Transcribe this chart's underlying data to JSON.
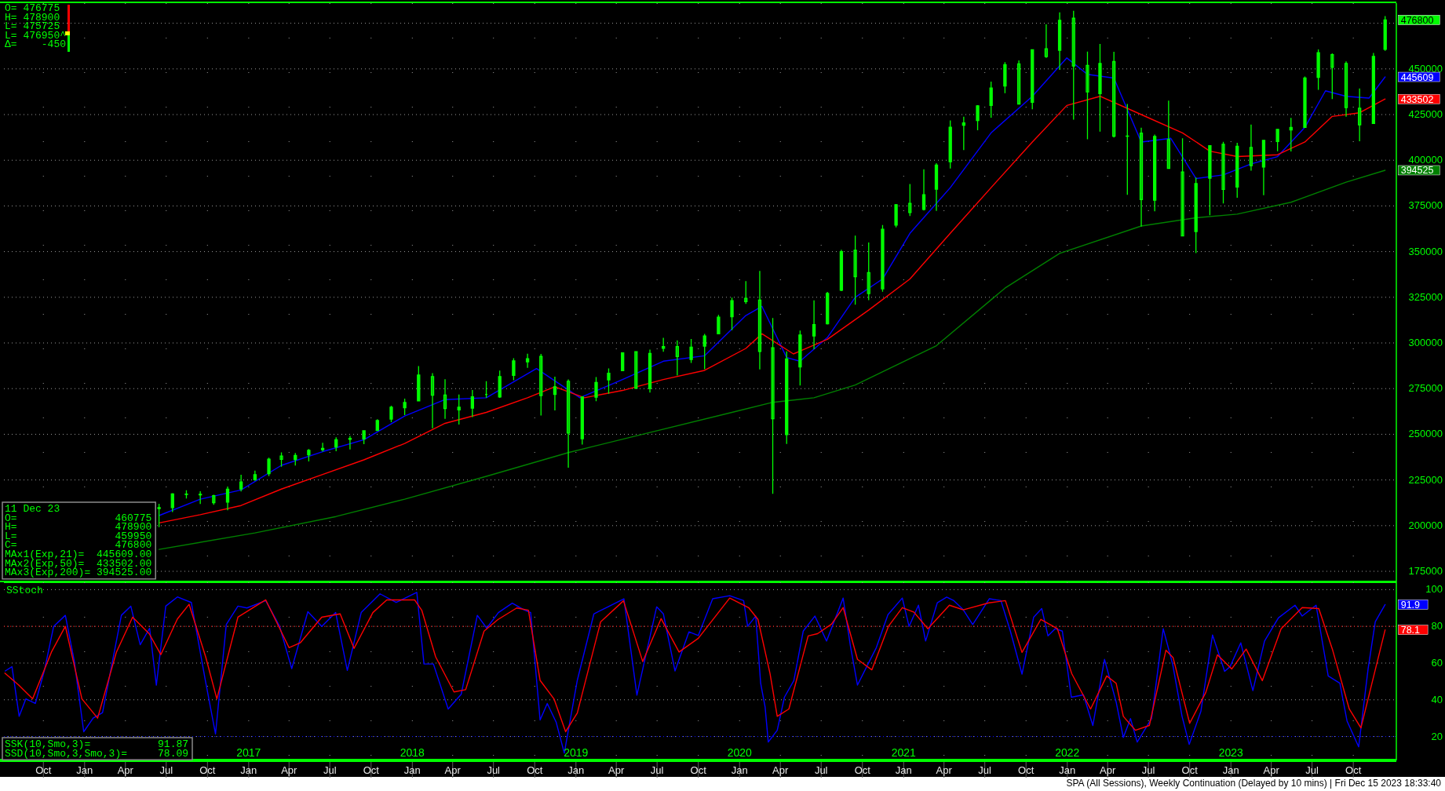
{
  "chart_data": [
    {
      "type": "candlestick",
      "color": "#00ff00",
      "x": [
        "2016-06-15",
        "2016-07-15",
        "2016-08-15",
        "2016-09-15",
        "2016-10-15",
        "2016-11-15",
        "2016-12-15",
        "2017-01-15",
        "2017-02-15",
        "2017-03-15",
        "2017-04-15",
        "2017-05-15",
        "2017-06-15",
        "2017-07-15",
        "2017-08-15",
        "2017-09-15",
        "2017-10-15",
        "2017-11-15",
        "2017-12-15",
        "2018-01-15",
        "2018-02-15",
        "2018-03-15",
        "2018-04-15",
        "2018-05-15",
        "2018-06-15",
        "2018-07-15",
        "2018-08-15",
        "2018-09-15",
        "2018-10-15",
        "2018-11-15",
        "2018-12-15",
        "2019-01-15",
        "2019-02-15",
        "2019-03-15",
        "2019-04-15",
        "2019-05-15",
        "2019-06-15",
        "2019-07-15",
        "2019-08-15",
        "2019-09-15",
        "2019-10-15",
        "2019-11-15",
        "2019-12-15",
        "2020-01-15",
        "2020-02-15",
        "2020-03-15",
        "2020-04-15",
        "2020-05-15",
        "2020-06-15",
        "2020-07-15",
        "2020-08-15",
        "2020-09-15",
        "2020-10-15",
        "2020-11-15",
        "2020-12-15",
        "2021-01-15",
        "2021-02-15",
        "2021-03-15",
        "2021-04-15",
        "2021-05-15",
        "2021-06-15",
        "2021-07-15",
        "2021-08-15",
        "2021-09-15",
        "2021-10-15",
        "2021-11-15",
        "2021-12-15",
        "2022-01-15",
        "2022-02-15",
        "2022-03-15",
        "2022-04-15",
        "2022-05-15",
        "2022-06-15",
        "2022-07-15",
        "2022-08-15",
        "2022-09-15",
        "2022-10-15",
        "2022-11-15",
        "2022-12-15",
        "2023-01-15",
        "2023-02-15",
        "2023-03-15",
        "2023-04-15",
        "2023-05-15",
        "2023-06-15",
        "2023-07-15",
        "2023-08-15",
        "2023-09-15",
        "2023-10-15",
        "2023-11-15",
        "2023-12-11"
      ],
      "ohlc": [
        [
          209300,
          212000,
          199200,
          209900
        ],
        [
          209900,
          217800,
          207400,
          217400
        ],
        [
          217300,
          219400,
          214800,
          217100
        ],
        [
          217100,
          218800,
          211900,
          216800
        ],
        [
          216400,
          216900,
          211400,
          212600
        ],
        [
          212900,
          221400,
          208400,
          219900
        ],
        [
          220100,
          227800,
          218700,
          223900
        ],
        [
          225100,
          230100,
          224500,
          227900
        ],
        [
          228500,
          237200,
          227100,
          236400
        ],
        [
          238100,
          240100,
          232200,
          236300
        ],
        [
          236200,
          239800,
          232900,
          238400
        ],
        [
          238800,
          241900,
          235200,
          241200
        ],
        [
          241500,
          245400,
          240500,
          242300
        ],
        [
          243100,
          248400,
          240700,
          247000
        ],
        [
          247800,
          249100,
          241700,
          247200
        ],
        [
          247500,
          251900,
          244600,
          251900
        ],
        [
          252100,
          258200,
          252000,
          257500
        ],
        [
          258300,
          265700,
          256600,
          264800
        ],
        [
          264500,
          269500,
          260500,
          267400
        ],
        [
          268300,
          287300,
          268200,
          282400
        ],
        [
          281600,
          283500,
          253300,
          271400
        ],
        [
          271500,
          280100,
          258500,
          264100
        ],
        [
          263300,
          271800,
          255300,
          264800
        ],
        [
          264300,
          274200,
          259400,
          270500
        ],
        [
          271800,
          279100,
          269900,
          271800
        ],
        [
          270400,
          284900,
          269900,
          281600
        ],
        [
          282200,
          291600,
          279600,
          290200
        ],
        [
          289700,
          294100,
          286400,
          291400
        ],
        [
          292600,
          294000,
          260300,
          271200
        ],
        [
          271800,
          281500,
          263100,
          276000
        ],
        [
          279000,
          280000,
          231700,
          250700
        ],
        [
          247600,
          270800,
          244400,
          270400
        ],
        [
          270300,
          281300,
          268100,
          278400
        ],
        [
          279800,
          286000,
          272200,
          283400
        ],
        [
          284800,
          294900,
          284800,
          294600
        ],
        [
          295200,
          295400,
          275000,
          275200
        ],
        [
          275100,
          296400,
          272800,
          294200
        ],
        [
          297100,
          302800,
          295200,
          298000
        ],
        [
          298000,
          301400,
          282200,
          292600
        ],
        [
          290900,
          302200,
          289100,
          297700
        ],
        [
          298300,
          305000,
          285600,
          303800
        ],
        [
          305000,
          315400,
          305000,
          314100
        ],
        [
          314400,
          324800,
          307000,
          323100
        ],
        [
          324400,
          333800,
          321400,
          322600
        ],
        [
          323500,
          339400,
          285500,
          295400
        ],
        [
          297400,
          313600,
          217400,
          258500
        ],
        [
          249800,
          295400,
          244700,
          291200
        ],
        [
          286900,
          306800,
          276700,
          304400
        ],
        [
          303800,
          323300,
          296600,
          310000
        ],
        [
          310500,
          327900,
          310100,
          327100
        ],
        [
          328900,
          351000,
          328400,
          350000
        ],
        [
          350700,
          358800,
          320900,
          336300
        ],
        [
          338500,
          355000,
          323400,
          327000
        ],
        [
          329600,
          364600,
          328000,
          362200
        ],
        [
          364500,
          376000,
          363300,
          375600
        ],
        [
          376400,
          387000,
          369500,
          371400
        ],
        [
          373100,
          395000,
          372500,
          381100
        ],
        [
          384200,
          398400,
          372300,
          397300
        ],
        [
          399200,
          421800,
          395500,
          418100
        ],
        [
          419200,
          423800,
          405600,
          420400
        ],
        [
          421700,
          430200,
          416400,
          429800
        ],
        [
          430000,
          443000,
          423300,
          439500
        ],
        [
          440600,
          453700,
          436700,
          452300
        ],
        [
          452800,
          454600,
          430500,
          430800
        ],
        [
          431700,
          460800,
          427900,
          460500
        ],
        [
          461000,
          474400,
          456000,
          456700
        ],
        [
          460200,
          480900,
          449500,
          476600
        ],
        [
          477800,
          481800,
          422200,
          451600
        ],
        [
          451900,
          459500,
          411500,
          437400
        ],
        [
          436400,
          463700,
          415700,
          453000
        ],
        [
          454000,
          459400,
          412400,
          413200
        ],
        [
          413100,
          430800,
          381100,
          413200
        ],
        [
          414900,
          417800,
          363700,
          378500
        ],
        [
          378100,
          414100,
          372100,
          413000
        ],
        [
          411300,
          432600,
          395500,
          395500
        ],
        [
          393600,
          412000,
          358500,
          358600
        ],
        [
          361000,
          390500,
          349200,
          387200
        ],
        [
          390200,
          408000,
          369900,
          408000
        ],
        [
          408700,
          410100,
          376400,
          384000
        ],
        [
          385300,
          409500,
          379500,
          407700
        ],
        [
          407000,
          419500,
          394300,
          397000
        ],
        [
          396300,
          411000,
          380900,
          410900
        ],
        [
          410200,
          417000,
          404900,
          416900
        ],
        [
          416600,
          423200,
          404800,
          418000
        ],
        [
          418000,
          445800,
          417800,
          445000
        ],
        [
          445400,
          460700,
          438500,
          458900
        ],
        [
          457800,
          458500,
          433500,
          450800
        ],
        [
          453000,
          454100,
          423800,
          428800
        ],
        [
          428500,
          439300,
          410400,
          419400
        ],
        [
          420100,
          458700,
          419800,
          456800
        ],
        [
          460775,
          478900,
          459950,
          476800
        ]
      ],
      "series": [
        {
          "type": "line",
          "color": "#0000ff",
          "x": [
            "2016-06-15",
            "2016-09-15",
            "2016-12-15",
            "2017-03-15",
            "2017-06-15",
            "2017-09-15",
            "2017-12-15",
            "2018-03-15",
            "2018-06-15",
            "2018-10-05",
            "2019-01-10",
            "2019-04-15",
            "2019-07-15",
            "2019-10-15",
            "2020-01-15",
            "2020-02-20",
            "2020-04-15",
            "2020-05-15",
            "2020-07-15",
            "2020-09-15",
            "2020-11-15",
            "2021-01-15",
            "2021-04-15",
            "2021-07-15",
            "2021-10-15",
            "2021-12-31",
            "2022-02-15",
            "2022-04-15",
            "2022-06-15",
            "2022-08-20",
            "2022-10-15",
            "2022-12-15",
            "2023-02-15",
            "2023-04-15",
            "2023-06-15",
            "2023-07-31",
            "2023-09-15",
            "2023-11-05",
            "2023-12-11"
          ],
          "values": [
            205500,
            214500,
            219500,
            233000,
            240500,
            247000,
            260000,
            269000,
            270000,
            286000,
            270000,
            280000,
            290000,
            293000,
            315000,
            320000,
            292000,
            290000,
            303000,
            325000,
            335000,
            360000,
            385000,
            415000,
            435000,
            456000,
            447000,
            445000,
            410000,
            412000,
            390000,
            392000,
            398000,
            402000,
            418000,
            438000,
            435000,
            434000,
            445609
          ],
          "value_labels": [
            null,
            null,
            null,
            null,
            null,
            null,
            null,
            null,
            null,
            null,
            null,
            null,
            null,
            null,
            null,
            null,
            null,
            null,
            null,
            null,
            null,
            null,
            null,
            null,
            null,
            null,
            null,
            null,
            null,
            null,
            null,
            null,
            null,
            null,
            null,
            null,
            null,
            null,
            "445609"
          ]
        },
        {
          "type": "line",
          "color": "#ff0000",
          "x": [
            "2016-06-15",
            "2016-09-15",
            "2016-12-15",
            "2017-03-15",
            "2017-06-15",
            "2017-09-15",
            "2017-12-15",
            "2018-03-15",
            "2018-06-15",
            "2018-09-15",
            "2018-11-15",
            "2019-01-20",
            "2019-04-15",
            "2019-07-15",
            "2019-10-15",
            "2020-01-15",
            "2020-02-20",
            "2020-04-30",
            "2020-07-15",
            "2020-10-15",
            "2021-01-15",
            "2021-04-15",
            "2021-07-15",
            "2021-10-15",
            "2021-12-31",
            "2022-03-15",
            "2022-06-15",
            "2022-09-15",
            "2022-11-15",
            "2023-01-15",
            "2023-04-15",
            "2023-06-15",
            "2023-08-15",
            "2023-10-15",
            "2023-12-11"
          ],
          "values": [
            201500,
            206000,
            211000,
            220000,
            228000,
            236000,
            245000,
            256000,
            262000,
            270000,
            276000,
            270000,
            274000,
            280000,
            285000,
            297000,
            305000,
            294000,
            302000,
            318000,
            335000,
            360000,
            385000,
            410000,
            430000,
            435000,
            425000,
            415000,
            405000,
            402000,
            403000,
            410000,
            424000,
            426000,
            433502
          ],
          "value_labels": [
            null,
            null,
            null,
            null,
            null,
            null,
            null,
            null,
            null,
            null,
            null,
            null,
            null,
            null,
            null,
            null,
            null,
            null,
            null,
            null,
            null,
            null,
            null,
            null,
            null,
            null,
            null,
            null,
            null,
            null,
            null,
            null,
            null,
            null,
            "433502"
          ]
        },
        {
          "type": "line",
          "color": "#008000",
          "x": [
            "2016-06-15",
            "2017-01-15",
            "2017-07-15",
            "2017-12-15",
            "2018-06-15",
            "2018-12-15",
            "2019-06-15",
            "2019-12-15",
            "2020-03-15",
            "2020-06-15",
            "2020-09-15",
            "2021-03-15",
            "2021-08-15",
            "2021-12-15",
            "2022-06-15",
            "2022-10-15",
            "2023-01-15",
            "2023-05-15",
            "2023-09-15",
            "2023-12-11"
          ],
          "values": [
            187000,
            196000,
            205000,
            214500,
            227000,
            240000,
            251000,
            262000,
            267500,
            270000,
            277000,
            298500,
            330000,
            349000,
            364000,
            368500,
            370500,
            377000,
            388000,
            394525
          ],
          "value_labels": [
            null,
            null,
            null,
            null,
            null,
            null,
            null,
            null,
            null,
            null,
            null,
            null,
            null,
            null,
            null,
            null,
            null,
            null,
            null,
            "394525"
          ]
        }
      ],
      "xlim": [
        "2015-07-05",
        "2024-01-05"
      ],
      "xticks": [
        {
          "value": "2015-10-01",
          "label": null
        },
        {
          "value": "2016-01-01",
          "label": null
        },
        {
          "value": "2016-04-01",
          "label": null
        },
        {
          "value": "2016-07-01",
          "label": null
        },
        {
          "value": "2016-10-01",
          "label": null
        },
        {
          "value": "2017-01-01",
          "label": null
        },
        {
          "value": "2017-04-01",
          "label": null
        },
        {
          "value": "2017-07-01",
          "label": null
        },
        {
          "value": "2017-10-01",
          "label": null
        },
        {
          "value": "2018-01-01",
          "label": null
        },
        {
          "value": "2018-04-01",
          "label": null
        },
        {
          "value": "2018-07-01",
          "label": null
        },
        {
          "value": "2018-10-01",
          "label": null
        },
        {
          "value": "2019-01-01",
          "label": null
        },
        {
          "value": "2019-04-01",
          "label": null
        },
        {
          "value": "2019-07-01",
          "label": null
        },
        {
          "value": "2019-10-01",
          "label": null
        },
        {
          "value": "2020-01-01",
          "label": null
        },
        {
          "value": "2020-04-01",
          "label": null
        },
        {
          "value": "2020-07-01",
          "label": null
        },
        {
          "value": "2020-10-01",
          "label": null
        },
        {
          "value": "2021-01-01",
          "label": null
        },
        {
          "value": "2021-04-01",
          "label": null
        },
        {
          "value": "2021-07-01",
          "label": null
        },
        {
          "value": "2021-10-01",
          "label": null
        },
        {
          "value": "2022-01-01",
          "label": null
        },
        {
          "value": "2022-04-01",
          "label": null
        },
        {
          "value": "2022-07-01",
          "label": null
        },
        {
          "value": "2022-10-01",
          "label": null
        },
        {
          "value": "2023-01-01",
          "label": null
        },
        {
          "value": "2023-04-01",
          "label": null
        },
        {
          "value": "2023-07-01",
          "label": null
        },
        {
          "value": "2023-10-01",
          "label": null
        }
      ],
      "ylim": [
        169000,
        486000
      ],
      "yticks": [
        175000,
        200000,
        225000,
        250000,
        275000,
        300000,
        325000,
        350000,
        375000,
        400000,
        425000,
        450000,
        {
          "value": 475000,
          "label": null
        }
      ],
      "grid": true,
      "tick_labels": "y",
      "annotations": [
        "O= 476775\nH= 478900\nL= 475725\nL= 476950^\nΔ=    -450",
        "11 Dec 23\nO=                460775\nH=                478900\nL=                459950\nC=                476800\nMAx1(Exp,21)=  445609.00\nMAx2(Exp,50)=  433502.00\nMAx3(Exp,200)= 394525.00",
        {
          "text": "476800",
          "x": "2023-12-11",
          "y": 476800
        }
      ]
    },
    {
      "type": "line",
      "title": "SStoch",
      "series": [
        {
          "color": "#0000ff",
          "x": [
            "2015-07-08",
            "2015-07-23",
            "2015-08-08",
            "2015-08-23",
            "2015-09-13",
            "2015-10-03",
            "2015-10-24",
            "2015-11-19",
            "2015-12-09",
            "2015-12-30",
            "2016-01-20",
            "2016-02-10",
            "2016-03-23",
            "2016-04-13",
            "2016-05-04",
            "2016-05-25",
            "2016-06-09",
            "2016-06-30",
            "2016-07-26",
            "2016-08-26",
            "2016-09-26",
            "2016-10-19",
            "2016-11-12",
            "2016-12-08",
            "2016-12-28",
            "2017-02-08",
            "2017-03-11",
            "2017-04-07",
            "2017-05-13",
            "2017-06-13",
            "2017-07-14",
            "2017-08-09",
            "2017-09-09",
            "2017-10-21",
            "2017-11-26",
            "2018-01-11",
            "2018-01-27",
            "2018-02-17",
            "2018-03-22",
            "2018-04-20",
            "2018-05-26",
            "2018-06-16",
            "2018-07-12",
            "2018-08-12",
            "2018-09-07",
            "2018-09-22",
            "2018-10-13",
            "2018-10-29",
            "2018-11-18",
            "2018-12-06",
            "2019-01-04",
            "2019-02-10",
            "2019-03-08",
            "2019-04-18",
            "2019-05-17",
            "2019-06-30",
            "2019-07-15",
            "2019-08-10",
            "2019-09-10",
            "2019-10-01",
            "2019-11-02",
            "2019-12-10",
            "2020-01-10",
            "2020-01-19",
            "2020-02-06",
            "2020-02-17",
            "2020-02-27",
            "2020-03-05",
            "2020-03-25",
            "2020-04-10",
            "2020-05-01",
            "2020-05-22",
            "2020-06-17",
            "2020-07-13",
            "2020-08-19",
            "2020-09-04",
            "2020-09-20",
            "2020-10-16",
            "2020-11-01",
            "2020-11-27",
            "2020-12-29",
            "2021-01-13",
            "2021-02-03",
            "2021-02-19",
            "2021-03-17",
            "2021-04-07",
            "2021-04-23",
            "2021-05-14",
            "2021-06-04",
            "2021-07-11",
            "2021-08-06",
            "2021-08-27",
            "2021-09-22",
            "2021-10-18",
            "2021-11-05",
            "2021-11-19",
            "2021-12-05",
            "2021-12-21",
            "2022-01-10",
            "2022-02-06",
            "2022-02-27",
            "2022-03-25",
            "2022-04-20",
            "2022-05-06",
            "2022-05-22",
            "2022-06-06",
            "2022-07-08",
            "2022-08-03",
            "2022-08-24",
            "2022-09-14",
            "2022-09-30",
            "2022-10-26",
            "2022-11-21",
            "2022-12-18",
            "2022-12-30",
            "2023-01-23",
            "2023-02-19",
            "2023-03-17",
            "2023-04-17",
            "2023-05-24",
            "2023-06-09",
            "2023-07-10",
            "2023-08-06",
            "2023-09-01",
            "2023-09-17",
            "2023-10-13",
            "2023-11-03",
            "2023-11-19",
            "2023-12-11"
          ],
          "values": [
            55.7,
            58,
            31,
            40.5,
            38,
            55.7,
            80,
            86,
            61,
            22.6,
            30,
            33,
            86,
            91,
            70,
            79,
            48,
            91,
            96,
            93,
            51,
            21.4,
            81,
            91,
            90,
            94,
            80,
            57,
            88,
            80,
            87.5,
            56,
            87.5,
            97.7,
            93,
            98.5,
            59.5,
            59.5,
            35,
            43,
            86,
            79,
            87.5,
            92.6,
            89,
            87.5,
            29,
            38,
            27.7,
            11,
            50.6,
            86.8,
            90,
            95,
            42.5,
            90.6,
            86.8,
            55.7,
            77,
            75,
            95,
            96.7,
            94,
            80,
            85.6,
            49,
            36,
            17,
            23.4,
            41.4,
            50.4,
            77.4,
            85.6,
            72,
            95.4,
            69.7,
            48,
            60.7,
            68.4,
            86.4,
            95.4,
            80,
            91.5,
            72,
            92.8,
            95.9,
            94,
            89,
            81,
            95,
            94,
            77.4,
            54,
            85,
            89.7,
            74.8,
            78.7,
            77.4,
            41.4,
            42.7,
            26,
            62,
            38.8,
            19.5,
            29.8,
            17,
            29.8,
            78.7,
            59.4,
            31,
            15.7,
            33.7,
            75.3,
            55.5,
            58,
            71,
            45,
            72,
            84.6,
            91.5,
            85.6,
            91.5,
            53,
            49,
            28.5,
            14.4,
            56.8,
            82.5,
            91.87
          ],
          "value_labels": [
            null,
            null,
            null,
            null,
            null,
            null,
            null,
            null,
            null,
            null,
            null,
            null,
            null,
            null,
            null,
            null,
            null,
            null,
            null,
            null,
            null,
            null,
            null,
            null,
            null,
            null,
            null,
            null,
            null,
            null,
            null,
            null,
            null,
            null,
            null,
            null,
            null,
            null,
            null,
            null,
            null,
            null,
            null,
            null,
            null,
            null,
            null,
            null,
            null,
            null,
            null,
            null,
            null,
            null,
            null,
            null,
            null,
            null,
            null,
            null,
            null,
            null,
            null,
            null,
            null,
            null,
            null,
            null,
            null,
            null,
            null,
            null,
            null,
            null,
            null,
            null,
            null,
            null,
            null,
            null,
            null,
            null,
            null,
            null,
            null,
            null,
            null,
            null,
            null,
            null,
            null,
            null,
            null,
            null,
            null,
            null,
            null,
            null,
            null,
            null,
            null,
            null,
            null,
            null,
            null,
            null,
            null,
            null,
            null,
            null,
            null,
            null,
            null,
            null,
            null,
            null,
            null,
            null,
            null,
            null,
            null,
            null,
            null,
            null,
            null,
            null,
            null,
            null,
            "91.9"
          ]
        },
        {
          "color": "#ff0000",
          "x": [
            "2015-07-07",
            "2015-08-07",
            "2015-09-07",
            "2015-10-19",
            "2015-11-19",
            "2015-12-26",
            "2016-01-30",
            "2016-03-12",
            "2016-04-17",
            "2016-05-24",
            "2016-06-19",
            "2016-07-26",
            "2016-08-21",
            "2016-09-27",
            "2016-10-22",
            "2016-12-08",
            "2017-02-08",
            "2017-04-01",
            "2017-04-26",
            "2017-06-13",
            "2017-07-24",
            "2017-08-24",
            "2017-10-05",
            "2017-11-05",
            "2018-01-06",
            "2018-01-22",
            "2018-02-22",
            "2018-04-04",
            "2018-04-30",
            "2018-06-10",
            "2018-07-11",
            "2018-08-22",
            "2018-09-17",
            "2018-10-13",
            "2018-11-13",
            "2018-12-09",
            "2019-01-04",
            "2019-02-25",
            "2019-04-17",
            "2019-05-30",
            "2019-07-10",
            "2019-08-19",
            "2019-10-01",
            "2019-12-10",
            "2020-01-21",
            "2020-02-11",
            "2020-03-09",
            "2020-03-25",
            "2020-04-20",
            "2020-06-02",
            "2020-06-23",
            "2020-07-24",
            "2020-08-19",
            "2020-09-20",
            "2020-10-22",
            "2020-11-28",
            "2020-12-29",
            "2021-01-24",
            "2021-02-24",
            "2021-04-13",
            "2021-05-14",
            "2021-07-10",
            "2021-08-16",
            "2021-09-22",
            "2021-11-03",
            "2021-12-10",
            "2022-01-11",
            "2022-02-22",
            "2022-03-30",
            "2022-04-20",
            "2022-05-06",
            "2022-06-02",
            "2022-07-03",
            "2022-08-09",
            "2022-08-25",
            "2022-10-01",
            "2022-11-06",
            "2022-12-02",
            "2023-01-03",
            "2023-02-04",
            "2023-03-12",
            "2023-04-23",
            "2023-06-09",
            "2023-07-16",
            "2023-08-16",
            "2023-09-22",
            "2023-10-18",
            "2023-12-11"
          ],
          "values": [
            54.5,
            48,
            40.5,
            66,
            80,
            40.5,
            30,
            66,
            85,
            76,
            64.6,
            84,
            92,
            63.4,
            40.5,
            85,
            94.4,
            68.4,
            71,
            85,
            86.8,
            68,
            87.5,
            94.4,
            94.4,
            88.8,
            63.4,
            44.3,
            45.5,
            77.4,
            83.7,
            90,
            88.8,
            50.6,
            40.5,
            22.6,
            32.8,
            82.4,
            93.9,
            60.8,
            84.2,
            66,
            73.5,
            95.4,
            90.2,
            83.8,
            54.2,
            31,
            35,
            74.8,
            76,
            81.2,
            90.2,
            62,
            56.3,
            80,
            90.2,
            87.7,
            78.7,
            91.5,
            89,
            92.8,
            94,
            65.8,
            83.8,
            78.7,
            54.2,
            35,
            53,
            49,
            31,
            23.4,
            26,
            67,
            63,
            27.2,
            44,
            64.5,
            56.8,
            67.6,
            50.4,
            78.7,
            90.2,
            89.7,
            67,
            35,
            24.7,
            78.09
          ],
          "value_labels": [
            null,
            null,
            null,
            null,
            null,
            null,
            null,
            null,
            null,
            null,
            null,
            null,
            null,
            null,
            null,
            null,
            null,
            null,
            null,
            null,
            null,
            null,
            null,
            null,
            null,
            null,
            null,
            null,
            null,
            null,
            null,
            null,
            null,
            null,
            null,
            null,
            null,
            null,
            null,
            null,
            null,
            null,
            null,
            null,
            null,
            null,
            null,
            null,
            null,
            null,
            null,
            null,
            null,
            null,
            null,
            null,
            null,
            null,
            null,
            null,
            null,
            null,
            null,
            null,
            null,
            null,
            null,
            null,
            null,
            null,
            null,
            null,
            null,
            null,
            null,
            null,
            null,
            null,
            null,
            null,
            null,
            null,
            null,
            null,
            null,
            null,
            null,
            "78.1"
          ]
        }
      ],
      "xlim": [
        "2015-07-05",
        "2024-01-05"
      ],
      "xticks": [
        {
          "value": "2015-10-01",
          "label": "Oct"
        },
        {
          "value": "2016-01-01",
          "label": "Jan"
        },
        {
          "value": "2016-04-01",
          "label": "Apr"
        },
        {
          "value": "2016-07-01",
          "label": "Jul"
        },
        {
          "value": "2016-10-01",
          "label": "Oct"
        },
        {
          "value": "2017-01-01",
          "label": "Jan"
        },
        {
          "value": "2017-04-01",
          "label": "Apr"
        },
        {
          "value": "2017-07-01",
          "label": "Jul"
        },
        {
          "value": "2017-10-01",
          "label": "Oct"
        },
        {
          "value": "2018-01-01",
          "label": "Jan"
        },
        {
          "value": "2018-04-01",
          "label": "Apr"
        },
        {
          "value": "2018-07-01",
          "label": "Jul"
        },
        {
          "value": "2018-10-01",
          "label": "Oct"
        },
        {
          "value": "2019-01-01",
          "label": "Jan"
        },
        {
          "value": "2019-04-01",
          "label": "Apr"
        },
        {
          "value": "2019-07-01",
          "label": "Jul"
        },
        {
          "value": "2019-10-01",
          "label": "Oct"
        },
        {
          "value": "2020-01-01",
          "label": "Jan"
        },
        {
          "value": "2020-04-01",
          "label": "Apr"
        },
        {
          "value": "2020-07-01",
          "label": "Jul"
        },
        {
          "value": "2020-10-01",
          "label": "Oct"
        },
        {
          "value": "2021-01-01",
          "label": "Jan"
        },
        {
          "value": "2021-04-01",
          "label": "Apr"
        },
        {
          "value": "2021-07-01",
          "label": "Jul"
        },
        {
          "value": "2021-10-01",
          "label": "Oct"
        },
        {
          "value": "2022-01-01",
          "label": "Jan"
        },
        {
          "value": "2022-04-01",
          "label": "Apr"
        },
        {
          "value": "2022-07-01",
          "label": "Jul"
        },
        {
          "value": "2022-10-01",
          "label": "Oct"
        },
        {
          "value": "2023-01-01",
          "label": "Jan"
        },
        {
          "value": "2023-04-01",
          "label": "Apr"
        },
        {
          "value": "2023-07-01",
          "label": "Jul"
        },
        {
          "value": "2023-10-01",
          "label": "Oct"
        }
      ],
      "x2lim": [
        "2015-07-05",
        "2024-01-05"
      ],
      "x2ticks": [
        {
          "value": "2017-01-01",
          "label": "2017"
        },
        {
          "value": "2018-01-01",
          "label": "2018"
        },
        {
          "value": "2019-01-01",
          "label": "2019"
        },
        {
          "value": "2020-01-01",
          "label": "2020"
        },
        {
          "value": "2021-01-01",
          "label": "2021"
        },
        {
          "value": "2022-01-01",
          "label": "2022"
        },
        {
          "value": "2023-01-01",
          "label": "2023"
        }
      ],
      "ylim": [
        7,
        104
      ],
      "yticks": [
        20,
        40,
        60,
        80,
        100
      ],
      "grid": true,
      "ref_lines": [
        {
          "axis": "y",
          "value": 80,
          "color": "#ff0000",
          "line_style": "dotted"
        },
        {
          "axis": "y",
          "value": 20,
          "color": "#0000ff",
          "line_style": "dotted"
        }
      ],
      "annotations": [
        "SSK(10,Smo,3)=           91.87\nSSD(10,Smo,3,Smo,3)=     78.09",
        "SPA (All Sessions), Weekly Continuation (Delayed by 10 mins) | Fri Dec 15 2023 18:33:40"
      ]
    }
  ]
}
